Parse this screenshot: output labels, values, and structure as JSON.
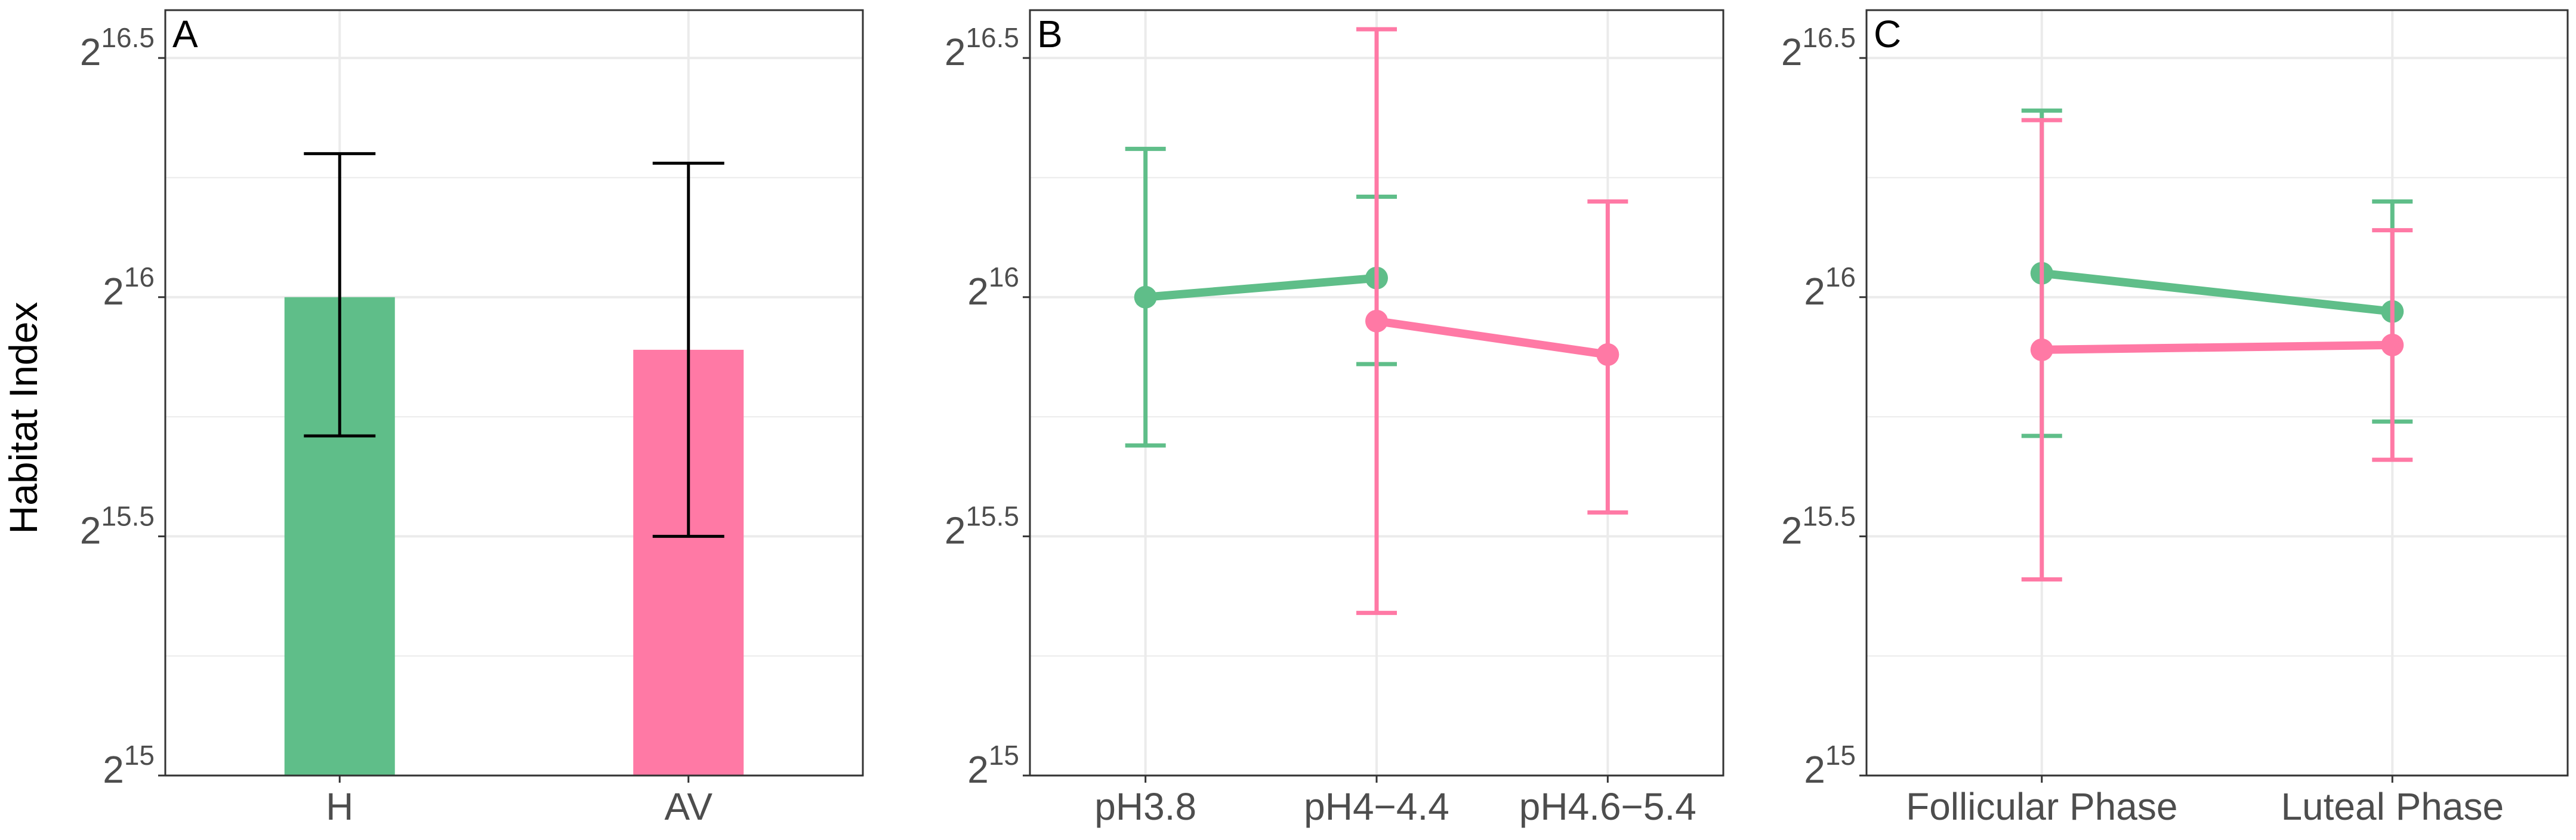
{
  "figure": {
    "ylabel": "Habitat Index"
  },
  "colors": {
    "green": "#5FBE89",
    "pink": "#FF79A5",
    "black": "#000000",
    "grid": "#EBEBEB",
    "axis": "#333333"
  },
  "chart_data": [
    {
      "panel_label": "A",
      "type": "bar",
      "ylabel": "Habitat Index",
      "y_scale": "log2",
      "ylim": [
        15,
        16.6
      ],
      "y_tick_labels": [
        {
          "value": 15,
          "base": "2",
          "exp": "15"
        },
        {
          "value": 15.5,
          "base": "2",
          "exp": "15.5"
        },
        {
          "value": 16,
          "base": "2",
          "exp": "16"
        },
        {
          "value": 16.5,
          "base": "2",
          "exp": "16.5"
        }
      ],
      "categories": [
        "H",
        "AV"
      ],
      "bars": [
        {
          "category": "H",
          "value": 16.0,
          "err_low": 15.71,
          "err_high": 16.3,
          "color": "#5FBE89"
        },
        {
          "category": "AV",
          "value": 15.89,
          "err_low": 15.5,
          "err_high": 16.28,
          "color": "#FF79A5"
        }
      ],
      "grid": true
    },
    {
      "panel_label": "B",
      "type": "line",
      "y_scale": "log2",
      "ylim": [
        15,
        16.6
      ],
      "y_tick_labels": [
        {
          "value": 15,
          "base": "2",
          "exp": "15"
        },
        {
          "value": 15.5,
          "base": "2",
          "exp": "15.5"
        },
        {
          "value": 16,
          "base": "2",
          "exp": "16"
        },
        {
          "value": 16.5,
          "base": "2",
          "exp": "16.5"
        }
      ],
      "categories": [
        "pH3.8",
        "pH4−4.4",
        "pH4.6−5.4"
      ],
      "series": [
        {
          "color": "#5FBE89",
          "points": [
            {
              "x": "pH3.8",
              "y": 16.0,
              "err_low": 15.69,
              "err_high": 16.31
            },
            {
              "x": "pH4−4.4",
              "y": 16.04,
              "err_low": 15.86,
              "err_high": 16.21
            }
          ]
        },
        {
          "color": "#FF79A5",
          "points": [
            {
              "x": "pH4−4.4",
              "y": 15.95,
              "err_low": 15.34,
              "err_high": 16.56
            },
            {
              "x": "pH4.6−5.4",
              "y": 15.88,
              "err_low": 15.55,
              "err_high": 16.2
            }
          ]
        }
      ],
      "grid": true
    },
    {
      "panel_label": "C",
      "type": "line",
      "y_scale": "log2",
      "ylim": [
        15,
        16.6
      ],
      "y_tick_labels": [
        {
          "value": 15,
          "base": "2",
          "exp": "15"
        },
        {
          "value": 15.5,
          "base": "2",
          "exp": "15.5"
        },
        {
          "value": 16,
          "base": "2",
          "exp": "16"
        },
        {
          "value": 16.5,
          "base": "2",
          "exp": "16.5"
        }
      ],
      "categories": [
        "Follicular Phase",
        "Luteal Phase"
      ],
      "series": [
        {
          "color": "#5FBE89",
          "points": [
            {
              "x": "Follicular Phase",
              "y": 16.05,
              "err_low": 15.71,
              "err_high": 16.39
            },
            {
              "x": "Luteal Phase",
              "y": 15.97,
              "err_low": 15.74,
              "err_high": 16.2
            }
          ]
        },
        {
          "color": "#FF79A5",
          "points": [
            {
              "x": "Follicular Phase",
              "y": 15.89,
              "err_low": 15.41,
              "err_high": 16.37
            },
            {
              "x": "Luteal Phase",
              "y": 15.9,
              "err_low": 15.66,
              "err_high": 16.14
            }
          ]
        }
      ],
      "grid": true
    }
  ]
}
